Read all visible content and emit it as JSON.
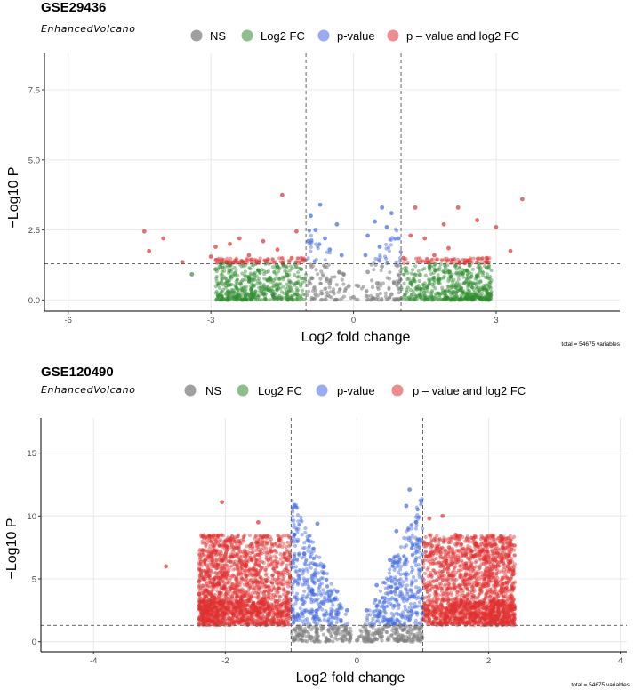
{
  "chart_data": [
    {
      "type": "scatter",
      "title": "GSE29436",
      "subtitle": "EnhancedVolcano",
      "xlabel": "Log2 fold change",
      "ylabel": "−Log10 P",
      "xlim": [
        -6.5,
        5.6
      ],
      "ylim": [
        -0.4,
        8.8
      ],
      "xticks": [
        -6,
        -3,
        0,
        3
      ],
      "xtick_labels": [
        "-6",
        "-3",
        "0",
        "3"
      ],
      "yticks": [
        0.0,
        2.5,
        5.0,
        7.5
      ],
      "ytick_labels": [
        "0.0",
        "2.5",
        "5.0",
        "7.5"
      ],
      "fc_cutoff": 1,
      "p_cutoff_line": 1.3,
      "legend": [
        "NS",
        "Log2 FC",
        "p-value",
        "p – value and log2 FC"
      ],
      "caption": "total = 54675 variables",
      "series": [
        {
          "name": "NS",
          "color": "#808080",
          "points": [
            [
              -0.9,
              1.25
            ],
            [
              -0.6,
              1.2
            ],
            [
              -0.3,
              1.0
            ],
            [
              -0.1,
              0.5
            ],
            [
              0.0,
              0.1
            ],
            [
              0.1,
              0.5
            ],
            [
              0.3,
              1.0
            ],
            [
              0.6,
              1.2
            ],
            [
              0.9,
              1.25
            ],
            [
              -0.8,
              0.2
            ],
            [
              0.8,
              0.2
            ],
            [
              -0.5,
              0.6
            ],
            [
              0.5,
              0.6
            ]
          ]
        },
        {
          "name": "Log2 FC",
          "color": "#2e8b2e",
          "points": [
            [
              -3.4,
              0.92
            ],
            [
              -2.9,
              1.1
            ],
            [
              -2.5,
              0.95
            ],
            [
              -2.2,
              0.8
            ],
            [
              -2.0,
              1.05
            ],
            [
              -1.8,
              0.7
            ],
            [
              -1.6,
              1.2
            ],
            [
              -1.4,
              0.9
            ],
            [
              -1.2,
              0.6
            ],
            [
              -1.1,
              1.1
            ],
            [
              1.1,
              1.05
            ],
            [
              1.2,
              0.6
            ],
            [
              1.4,
              0.9
            ],
            [
              1.6,
              1.2
            ],
            [
              1.8,
              0.75
            ],
            [
              2.0,
              1.0
            ],
            [
              2.3,
              0.95
            ],
            [
              2.6,
              0.85
            ],
            [
              2.8,
              1.15
            ]
          ]
        },
        {
          "name": "p-value",
          "color": "#4169e1",
          "points": [
            [
              -0.95,
              2.1
            ],
            [
              -0.8,
              2.5
            ],
            [
              -0.9,
              3.0
            ],
            [
              -0.7,
              3.4
            ],
            [
              -0.6,
              2.2
            ],
            [
              -0.5,
              1.8
            ],
            [
              -0.35,
              2.7
            ],
            [
              -0.25,
              1.6
            ],
            [
              0.25,
              1.6
            ],
            [
              0.3,
              2.3
            ],
            [
              0.45,
              2.8
            ],
            [
              0.55,
              1.9
            ],
            [
              0.7,
              2.6
            ],
            [
              0.8,
              3.1
            ],
            [
              0.95,
              2.2
            ],
            [
              0.6,
              3.3
            ]
          ]
        },
        {
          "name": "p – value and log2 FC",
          "color": "#e03030",
          "points": [
            [
              -4.4,
              2.45
            ],
            [
              -4.3,
              1.75
            ],
            [
              -4.0,
              2.2
            ],
            [
              -3.6,
              1.35
            ],
            [
              -3.0,
              1.55
            ],
            [
              -2.9,
              1.9
            ],
            [
              -2.6,
              2.0
            ],
            [
              -2.4,
              2.2
            ],
            [
              -2.2,
              1.6
            ],
            [
              -1.9,
              2.1
            ],
            [
              -1.8,
              1.45
            ],
            [
              -1.6,
              1.8
            ],
            [
              -1.5,
              3.75
            ],
            [
              -1.3,
              1.5
            ],
            [
              -1.2,
              2.45
            ],
            [
              -1.05,
              1.4
            ],
            [
              1.05,
              1.5
            ],
            [
              1.2,
              2.3
            ],
            [
              1.3,
              3.3
            ],
            [
              1.5,
              2.2
            ],
            [
              1.7,
              1.6
            ],
            [
              1.9,
              2.7
            ],
            [
              2.0,
              1.85
            ],
            [
              2.2,
              3.3
            ],
            [
              2.4,
              1.4
            ],
            [
              2.6,
              2.85
            ],
            [
              2.8,
              1.5
            ],
            [
              3.0,
              2.6
            ],
            [
              3.3,
              1.75
            ],
            [
              3.55,
              3.6
            ]
          ]
        }
      ]
    },
    {
      "type": "scatter",
      "title": "GSE120490",
      "subtitle": "EnhancedVolcano",
      "xlabel": "Log2 fold change",
      "ylabel": "−Log10 P",
      "xlim": [
        -4.8,
        4.1
      ],
      "ylim": [
        -0.8,
        17.8
      ],
      "xticks": [
        -4,
        -2,
        0,
        2,
        4
      ],
      "xtick_labels": [
        "-4",
        "-2",
        "0",
        "2",
        "4"
      ],
      "yticks": [
        0,
        5,
        10,
        15
      ],
      "ytick_labels": [
        "0",
        "5",
        "10",
        "15"
      ],
      "fc_cutoff": 1,
      "p_cutoff_line": 1.3,
      "legend": [
        "NS",
        "Log2 FC",
        "p-value",
        "p – value and log2 FC"
      ],
      "caption": "total = 54675 variables",
      "series": [
        {
          "name": "NS",
          "color": "#808080",
          "points": [
            [
              -0.9,
              1.2
            ],
            [
              -0.6,
              1.0
            ],
            [
              -0.3,
              0.7
            ],
            [
              -0.1,
              0.3
            ],
            [
              0.0,
              0.1
            ],
            [
              0.1,
              0.3
            ],
            [
              0.3,
              0.7
            ],
            [
              0.6,
              1.0
            ],
            [
              0.9,
              1.2
            ],
            [
              -0.7,
              0.4
            ],
            [
              0.7,
              0.4
            ]
          ]
        },
        {
          "name": "Log2 FC",
          "color": "#2e8b2e",
          "points": []
        },
        {
          "name": "p-value",
          "color": "#4169e1",
          "points": [
            [
              -0.95,
              8.5
            ],
            [
              -0.6,
              9.4
            ],
            [
              -0.8,
              7.0
            ],
            [
              -0.5,
              6.0
            ],
            [
              -0.3,
              4.0
            ],
            [
              -0.15,
              2.5
            ],
            [
              0.15,
              2.5
            ],
            [
              0.3,
              4.5
            ],
            [
              0.5,
              6.5
            ],
            [
              0.6,
              8.8
            ],
            [
              0.75,
              10.8
            ],
            [
              0.8,
              12.1
            ],
            [
              0.9,
              9.5
            ],
            [
              0.95,
              7.5
            ]
          ]
        },
        {
          "name": "p – value and log2 FC",
          "color": "#e03030",
          "points": [
            [
              -2.9,
              6.0
            ],
            [
              -2.4,
              4.8
            ],
            [
              -2.4,
              3.8
            ],
            [
              -2.2,
              6.5
            ],
            [
              -2.05,
              11.1
            ],
            [
              -2.0,
              5.2
            ],
            [
              -1.8,
              8.0
            ],
            [
              -1.7,
              6.0
            ],
            [
              -1.5,
              9.5
            ],
            [
              -1.3,
              7.2
            ],
            [
              -1.2,
              5.5
            ],
            [
              -1.05,
              6.5
            ],
            [
              1.05,
              6.8
            ],
            [
              1.1,
              9.8
            ],
            [
              1.3,
              10.0
            ],
            [
              1.4,
              7.5
            ],
            [
              1.5,
              8.5
            ],
            [
              1.65,
              6.2
            ],
            [
              1.8,
              7.8
            ],
            [
              1.95,
              6.6
            ],
            [
              2.05,
              5.8
            ],
            [
              2.2,
              8.2
            ]
          ]
        }
      ]
    }
  ]
}
